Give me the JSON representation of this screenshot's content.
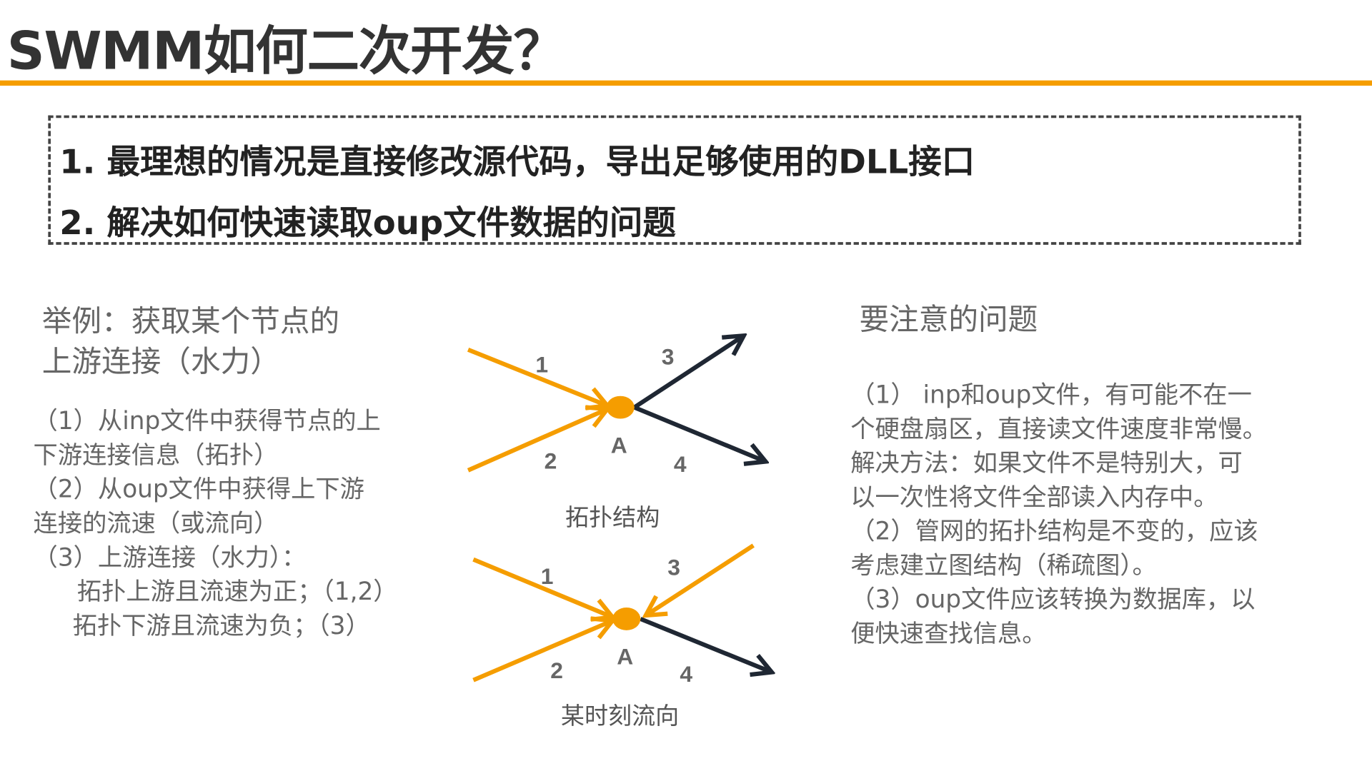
{
  "title": "SWMM如何二次开发？",
  "box": {
    "items": [
      "1. 最理想的情况是直接修改源代码，导出足够使用的DLL接口",
      "2. 解决如何快速读取oup文件数据的问题"
    ]
  },
  "left": {
    "heading": [
      "举例：获取某个节点的",
      "上游连接（水力）"
    ],
    "lines": [
      "（1）从inp文件中获得节点的上",
      "下游连接信息（拓扑）",
      "（2）从oup文件中获得上下游",
      "连接的流速（或流向）",
      "（3）上游连接（水力）：",
      "拓扑上游且流速为正；（1,2）",
      "拓扑下游且流速为负；（3）"
    ]
  },
  "diagram1": {
    "labels": [
      "1",
      "2",
      "3",
      "4"
    ],
    "node": "A",
    "caption": "拓扑结构"
  },
  "diagram2": {
    "labels": [
      "1",
      "2",
      "3",
      "4"
    ],
    "node": "A",
    "caption": "某时刻流向"
  },
  "right": {
    "heading": "要注意的问题",
    "lines": [
      "（1） inp和oup文件，有可能不在一",
      "个硬盘扇区，直接读文件速度非常慢。",
      "解决方法：如果文件不是特别大，可",
      "以一次性将文件全部读入内存中。",
      "（2）管网的拓扑结构是不变的，应该",
      "考虑建立图结构（稀疏图）。",
      "（3）oup文件应该转换为数据库，以",
      "便快速查找信息。"
    ]
  },
  "colors": {
    "accent": "#f59d00",
    "dark": "#1f2733",
    "text": "#666666"
  }
}
